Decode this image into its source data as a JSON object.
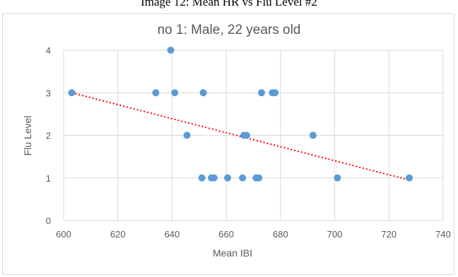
{
  "caption": "Image 12: Mean HR vs Flu Level #2",
  "chart_data": {
    "type": "scatter",
    "title": "no 1: Male, 22 years old",
    "xlabel": "Mean IBI",
    "ylabel": "Flu Level",
    "xlim": [
      600,
      740
    ],
    "ylim": [
      0,
      4
    ],
    "x_ticks": [
      "600",
      "620",
      "640",
      "660",
      "680",
      "700",
      "720",
      "740"
    ],
    "y_ticks": [
      "0",
      "1",
      "2",
      "3",
      "4"
    ],
    "grid": "vertical and horizontal major gridlines",
    "marker_color": "#5b9bd5",
    "trendline": {
      "type": "linear",
      "color": "#ff0000",
      "style": "dotted",
      "start": [
        603,
        3.0
      ],
      "end": [
        727.5,
        0.95
      ]
    },
    "points": [
      {
        "x": 603,
        "y": 3
      },
      {
        "x": 634,
        "y": 3
      },
      {
        "x": 639.5,
        "y": 4
      },
      {
        "x": 641,
        "y": 3
      },
      {
        "x": 645.5,
        "y": 2
      },
      {
        "x": 651,
        "y": 1
      },
      {
        "x": 651.5,
        "y": 3
      },
      {
        "x": 654.5,
        "y": 1
      },
      {
        "x": 655.5,
        "y": 1
      },
      {
        "x": 660.5,
        "y": 1
      },
      {
        "x": 666,
        "y": 1
      },
      {
        "x": 666.5,
        "y": 2
      },
      {
        "x": 667.5,
        "y": 2
      },
      {
        "x": 671,
        "y": 1
      },
      {
        "x": 672,
        "y": 1
      },
      {
        "x": 673,
        "y": 3
      },
      {
        "x": 677,
        "y": 3
      },
      {
        "x": 678,
        "y": 3
      },
      {
        "x": 692,
        "y": 2
      },
      {
        "x": 701,
        "y": 1
      },
      {
        "x": 727.5,
        "y": 1
      }
    ]
  }
}
